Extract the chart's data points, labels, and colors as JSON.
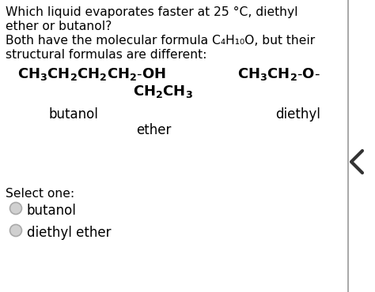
{
  "bg_color": "#ffffff",
  "text_color": "#000000",
  "radio_fill": "#d0d0d0",
  "radio_edge": "#aaaaaa",
  "divider_color": "#999999",
  "chevron_color": "#333333",
  "q1": "Which liquid evaporates faster at 25 °C, diethyl",
  "q2": "ether or butanol?",
  "q3": "Both have the molecular formula C₄H₁₀O, but their",
  "q4": "structural formulas are different:",
  "butanol_formula": "$\\mathregular{CH_3CH_2CH_2CH_2\\text{-}OH}$",
  "diethyl_formula_top": "$\\mathregular{CH_3CH_2\\text{-}O\\text{-}}$",
  "diethyl_formula_bot": "$\\mathregular{CH_2CH_3}$",
  "label_butanol": "butanol",
  "label_ether": "ether",
  "label_diethyl": "diethyl",
  "select_one": "Select one:",
  "option1": "butanol",
  "option2": "diethyl ether",
  "font_size_q": 11.2,
  "font_size_formula": 13.0,
  "font_size_label": 12.0,
  "font_size_select": 11.2,
  "font_size_option": 12.0,
  "fig_width": 4.74,
  "fig_height": 3.7,
  "dpi": 100
}
